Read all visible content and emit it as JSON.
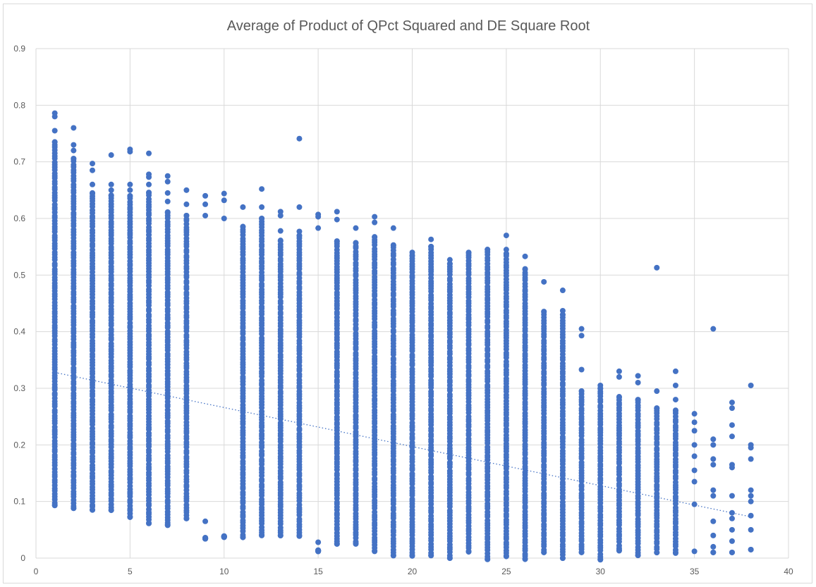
{
  "chart_data": {
    "type": "scatter",
    "title": "Average of Product of QPct Squared and DE Square Root",
    "xlabel": "",
    "ylabel": "",
    "xlim": [
      0,
      40
    ],
    "ylim": [
      0,
      0.9
    ],
    "x_ticks": [
      0,
      5,
      10,
      15,
      20,
      25,
      30,
      35,
      40
    ],
    "y_ticks": [
      0,
      0.1,
      0.2,
      0.3,
      0.4,
      0.5,
      0.6,
      0.7,
      0.8,
      0.9
    ],
    "grid": true,
    "legend": "none",
    "series_color": "#4472C4",
    "trendline": {
      "style": "dotted",
      "x_start": 1,
      "y_start": 0.328,
      "x_end": 38,
      "y_end": 0.073
    },
    "columns": [
      {
        "x": 1,
        "min": 0.093,
        "max": 0.786,
        "extra": [
          0.786,
          0.78,
          0.755,
          0.735
        ]
      },
      {
        "x": 2,
        "min": 0.088,
        "max": 0.76,
        "extra": [
          0.76,
          0.73,
          0.72,
          0.705
        ]
      },
      {
        "x": 3,
        "min": 0.085,
        "max": 0.697,
        "extra": [
          0.697,
          0.685,
          0.66,
          0.645
        ]
      },
      {
        "x": 4,
        "min": 0.085,
        "max": 0.712,
        "extra": [
          0.712,
          0.66,
          0.65,
          0.64
        ]
      },
      {
        "x": 5,
        "min": 0.073,
        "max": 0.722,
        "extra": [
          0.722,
          0.718,
          0.66,
          0.65,
          0.64
        ]
      },
      {
        "x": 6,
        "min": 0.062,
        "max": 0.715,
        "extra": [
          0.715,
          0.678,
          0.673,
          0.66,
          0.645
        ]
      },
      {
        "x": 7,
        "min": 0.058,
        "max": 0.675,
        "extra": [
          0.675,
          0.665,
          0.645,
          0.63,
          0.61
        ]
      },
      {
        "x": 8,
        "min": 0.07,
        "max": 0.65,
        "extra": [
          0.65,
          0.625,
          0.605
        ]
      },
      {
        "x": 9,
        "min": 0.035,
        "max": 0.64,
        "extra": [
          0.64,
          0.625,
          0.605,
          0.065,
          0.035
        ]
      },
      {
        "x": 10,
        "min": 0.038,
        "max": 0.644,
        "extra": [
          0.644,
          0.632,
          0.6,
          0.038
        ]
      },
      {
        "x": 11,
        "min": 0.037,
        "max": 0.62,
        "extra": [
          0.62,
          0.585
        ]
      },
      {
        "x": 12,
        "min": 0.04,
        "max": 0.652,
        "extra": [
          0.652,
          0.62,
          0.6
        ]
      },
      {
        "x": 13,
        "min": 0.04,
        "max": 0.612,
        "extra": [
          0.612,
          0.605,
          0.578,
          0.56
        ]
      },
      {
        "x": 14,
        "min": 0.04,
        "max": 0.741,
        "extra": [
          0.741,
          0.62,
          0.577,
          0.57
        ]
      },
      {
        "x": 15,
        "min": 0.013,
        "max": 0.607,
        "extra": [
          0.607,
          0.603,
          0.583,
          0.028,
          0.013
        ]
      },
      {
        "x": 16,
        "min": 0.025,
        "max": 0.612,
        "extra": [
          0.612,
          0.598,
          0.56
        ]
      },
      {
        "x": 17,
        "min": 0.025,
        "max": 0.583,
        "extra": [
          0.583,
          0.557
        ]
      },
      {
        "x": 18,
        "min": 0.012,
        "max": 0.603,
        "extra": [
          0.603,
          0.593,
          0.567
        ]
      },
      {
        "x": 19,
        "min": 0.005,
        "max": 0.583,
        "extra": [
          0.583,
          0.553
        ]
      },
      {
        "x": 20,
        "min": 0.005,
        "max": 0.54,
        "extra": [
          0.54,
          0.535
        ]
      },
      {
        "x": 21,
        "min": 0.005,
        "max": 0.563,
        "extra": [
          0.563,
          0.55
        ]
      },
      {
        "x": 22,
        "min": 0.0,
        "max": 0.527,
        "extra": [
          0.527,
          0.52
        ]
      },
      {
        "x": 23,
        "min": 0.012,
        "max": 0.54,
        "extra": [
          0.54
        ]
      },
      {
        "x": 24,
        "min": -0.002,
        "max": 0.545,
        "extra": [
          0.545
        ]
      },
      {
        "x": 25,
        "min": 0.003,
        "max": 0.57,
        "extra": [
          0.57,
          0.545,
          0.538
        ]
      },
      {
        "x": 26,
        "min": -0.002,
        "max": 0.533,
        "extra": [
          0.533,
          0.51
        ]
      },
      {
        "x": 27,
        "min": 0.01,
        "max": 0.488,
        "extra": [
          0.488,
          0.435
        ]
      },
      {
        "x": 28,
        "min": 0.0,
        "max": 0.473,
        "extra": [
          0.473,
          0.437,
          0.43
        ]
      },
      {
        "x": 29,
        "min": 0.01,
        "max": 0.405,
        "extra": [
          0.405,
          0.393,
          0.333,
          0.295
        ]
      },
      {
        "x": 30,
        "min": -0.002,
        "max": 0.305,
        "extra": [
          0.305,
          0.3
        ]
      },
      {
        "x": 31,
        "min": 0.013,
        "max": 0.33,
        "extra": [
          0.33,
          0.32,
          0.285
        ]
      },
      {
        "x": 32,
        "min": 0.005,
        "max": 0.322,
        "extra": [
          0.322,
          0.31,
          0.28
        ]
      },
      {
        "x": 33,
        "min": 0.01,
        "max": 0.513,
        "extra": [
          0.513,
          0.295,
          0.265
        ]
      },
      {
        "x": 34,
        "min": 0.01,
        "max": 0.33,
        "extra": [
          0.33,
          0.305,
          0.28,
          0.26
        ]
      },
      {
        "x": 35,
        "min": 0.012,
        "max": 0.255,
        "extra": [
          0.255,
          0.24,
          0.225,
          0.2,
          0.18,
          0.155,
          0.135,
          0.095
        ]
      },
      {
        "x": 36,
        "min": 0.01,
        "max": 0.405,
        "extra": [
          0.405,
          0.21,
          0.2,
          0.175,
          0.165,
          0.12,
          0.11,
          0.065,
          0.04,
          0.02,
          0.01
        ]
      },
      {
        "x": 37,
        "min": 0.01,
        "max": 0.275,
        "extra": [
          0.275,
          0.265,
          0.235,
          0.215,
          0.165,
          0.16,
          0.11,
          0.08,
          0.07,
          0.05,
          0.03,
          0.01
        ]
      },
      {
        "x": 38,
        "min": 0.015,
        "max": 0.305,
        "extra": [
          0.305,
          0.2,
          0.195,
          0.175,
          0.12,
          0.11,
          0.1,
          0.075,
          0.05,
          0.015
        ]
      }
    ]
  }
}
